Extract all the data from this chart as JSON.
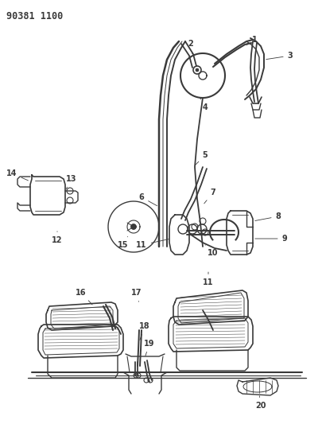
{
  "title": "90381 1100",
  "bg_color": "#ffffff",
  "line_color": "#3a3a3a",
  "title_fontsize": 8.5,
  "label_fontsize": 7,
  "fig_width": 4.05,
  "fig_height": 5.33,
  "dpi": 100
}
